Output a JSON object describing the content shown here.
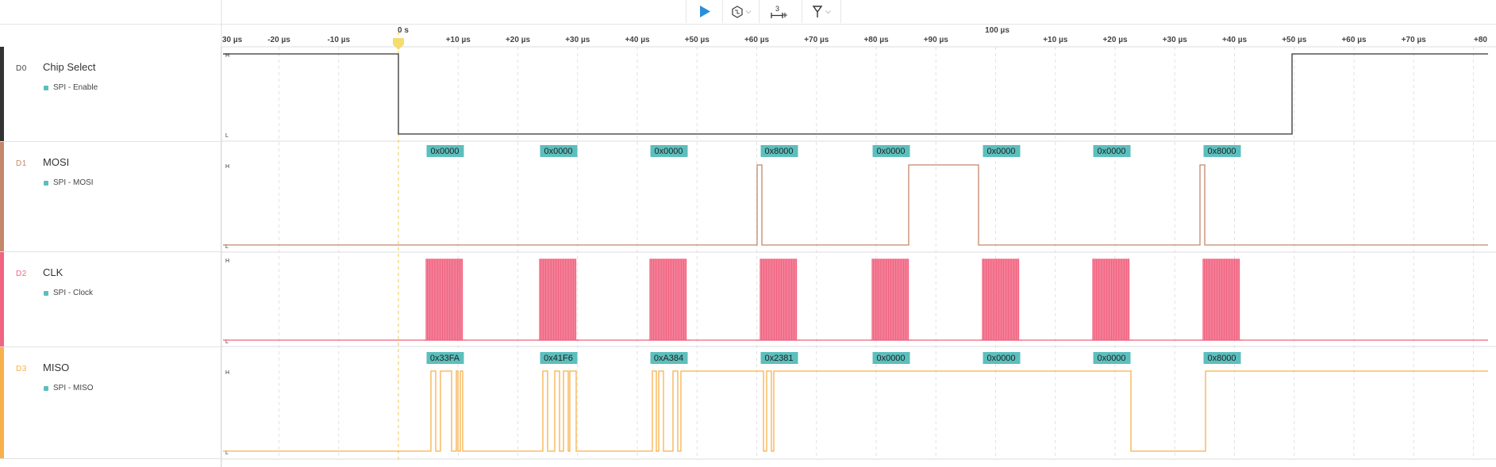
{
  "toolbar": {
    "play_icon": "play-icon",
    "trigger_icon": "trigger-icon",
    "measure_label": "3",
    "measure_icon": "measure-icon",
    "marker_icon": "marker-icon"
  },
  "ruler": {
    "zero_label": "0 s",
    "major_label": "100 µs",
    "ticks": [
      "30 µs",
      "-20 µs",
      "-10 µs",
      "+10 µs",
      "+20 µs",
      "+30 µs",
      "+40 µs",
      "+50 µs",
      "+60 µs",
      "+70 µs",
      "+80 µs",
      "+90 µs",
      "+10 µs",
      "+20 µs",
      "+30 µs",
      "+40 µs",
      "+50 µs",
      "+60 µs",
      "+70 µs",
      "+80"
    ]
  },
  "level_labels": {
    "high": "H",
    "low": "L"
  },
  "channels": [
    {
      "index": "D0",
      "name": "Chip Select",
      "analyzer": "SPI - Enable",
      "color": "#333333"
    },
    {
      "index": "D1",
      "name": "MOSI",
      "analyzer": "SPI - MOSI",
      "color": "#c4876a"
    },
    {
      "index": "D2",
      "name": "CLK",
      "analyzer": "SPI - Clock",
      "color": "#f16481"
    },
    {
      "index": "D3",
      "name": "MISO",
      "analyzer": "SPI - MISO",
      "color": "#f8b04a"
    }
  ],
  "mosi_frames": [
    "0x0000",
    "0x0000",
    "0x0000",
    "0x8000",
    "0x0000",
    "0x0000",
    "0x0000",
    "0x8000"
  ],
  "miso_frames": [
    "0x33FA",
    "0x41F6",
    "0xA384",
    "0x2381",
    "0x0000",
    "0x0000",
    "0x0000",
    "0x8000"
  ],
  "frame_label_color": "#5bbfbd"
}
